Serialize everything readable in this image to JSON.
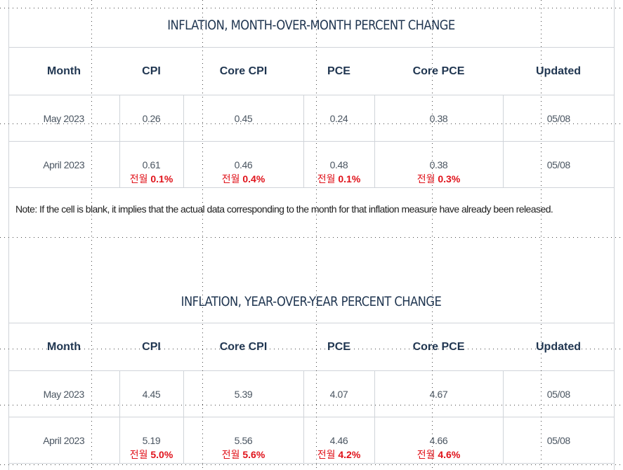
{
  "mom": {
    "title": "INFLATION, MONTH-OVER-MONTH PERCENT CHANGE",
    "headers": [
      "Month",
      "CPI",
      "Core CPI",
      "PCE",
      "Core PCE",
      "Updated"
    ],
    "rows": [
      {
        "month": "May 2023",
        "cpi": "0.26",
        "core_cpi": "0.45",
        "pce": "0.24",
        "core_pce": "0.38",
        "updated": "05/08"
      },
      {
        "month": "April 2023",
        "cpi": "0.61",
        "core_cpi": "0.46",
        "pce": "0.48",
        "core_pce": "0.38",
        "updated": "05/08"
      }
    ],
    "prev": {
      "prefix": "전월",
      "cpi": "0.1%",
      "core_cpi": "0.4%",
      "pce": "0.1%",
      "core_pce": "0.3%"
    }
  },
  "note": "Note: If the cell is blank, it implies that the actual data corresponding to the month for that inflation measure have already been released.",
  "yoy": {
    "title": "INFLATION, YEAR-OVER-YEAR PERCENT CHANGE",
    "headers": [
      "Month",
      "CPI",
      "Core CPI",
      "PCE",
      "Core PCE",
      "Updated"
    ],
    "rows": [
      {
        "month": "May 2023",
        "cpi": "4.45",
        "core_cpi": "5.39",
        "pce": "4.07",
        "core_pce": "4.67",
        "updated": "05/08"
      },
      {
        "month": "April 2023",
        "cpi": "5.19",
        "core_cpi": "5.56",
        "pce": "4.46",
        "core_pce": "4.66",
        "updated": "05/08"
      }
    ],
    "prev": {
      "prefix": "전월",
      "cpi": "5.0%",
      "core_cpi": "5.6%",
      "pce": "4.2%",
      "core_pce": "4.6%"
    }
  },
  "colors": {
    "title": "#1f3550",
    "annotation": "#e0121a",
    "grid": "#d0d4d9"
  }
}
